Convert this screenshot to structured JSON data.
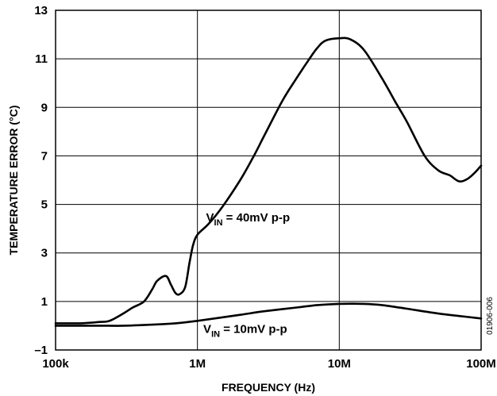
{
  "chart_data": {
    "type": "line",
    "xlabel": "FREQUENCY (Hz)",
    "ylabel": "TEMPERATURE ERROR (°C)",
    "x_scale": "log",
    "xlim": [
      100000,
      100000000
    ],
    "ylim": [
      -1,
      13
    ],
    "grid": true,
    "x_ticks": [
      {
        "value": 100000,
        "label": "100k"
      },
      {
        "value": 1000000,
        "label": "1M"
      },
      {
        "value": 10000000,
        "label": "10M"
      },
      {
        "value": 100000000,
        "label": "100M"
      }
    ],
    "y_ticks": [
      {
        "value": -1,
        "label": "–1"
      },
      {
        "value": 1,
        "label": "1"
      },
      {
        "value": 3,
        "label": "3"
      },
      {
        "value": 5,
        "label": "5"
      },
      {
        "value": 7,
        "label": "7"
      },
      {
        "value": 9,
        "label": "9"
      },
      {
        "value": 11,
        "label": "11"
      },
      {
        "value": 13,
        "label": "13"
      }
    ],
    "series": [
      {
        "name_main": "V",
        "name_sub": "IN",
        "name_rest": " = 40mV p-p",
        "color": "#000000",
        "points": [
          [
            100000,
            0.1
          ],
          [
            150000,
            0.1
          ],
          [
            200000,
            0.15
          ],
          [
            240000,
            0.2
          ],
          [
            300000,
            0.5
          ],
          [
            350000,
            0.75
          ],
          [
            420000,
            1.0
          ],
          [
            480000,
            1.5
          ],
          [
            520000,
            1.85
          ],
          [
            600000,
            2.05
          ],
          [
            650000,
            1.7
          ],
          [
            700000,
            1.35
          ],
          [
            750000,
            1.3
          ],
          [
            820000,
            1.6
          ],
          [
            880000,
            2.6
          ],
          [
            930000,
            3.3
          ],
          [
            1000000,
            3.75
          ],
          [
            1200000,
            4.2
          ],
          [
            1500000,
            4.9
          ],
          [
            2000000,
            6.0
          ],
          [
            2500000,
            7.0
          ],
          [
            3000000,
            7.9
          ],
          [
            4000000,
            9.3
          ],
          [
            5000000,
            10.2
          ],
          [
            6000000,
            10.9
          ],
          [
            7000000,
            11.45
          ],
          [
            8000000,
            11.75
          ],
          [
            10000000,
            11.85
          ],
          [
            12000000,
            11.8
          ],
          [
            15000000,
            11.35
          ],
          [
            20000000,
            10.2
          ],
          [
            25000000,
            9.2
          ],
          [
            30000000,
            8.4
          ],
          [
            40000000,
            7.0
          ],
          [
            50000000,
            6.4
          ],
          [
            60000000,
            6.2
          ],
          [
            70000000,
            5.95
          ],
          [
            80000000,
            6.05
          ],
          [
            90000000,
            6.3
          ],
          [
            100000000,
            6.6
          ]
        ]
      },
      {
        "name_main": "V",
        "name_sub": "IN",
        "name_rest": " = 10mV p-p",
        "color": "#000000",
        "points": [
          [
            100000,
            0.0
          ],
          [
            200000,
            0.0
          ],
          [
            300000,
            0.0
          ],
          [
            500000,
            0.05
          ],
          [
            700000,
            0.1
          ],
          [
            1000000,
            0.2
          ],
          [
            2000000,
            0.45
          ],
          [
            3000000,
            0.6
          ],
          [
            5000000,
            0.75
          ],
          [
            7000000,
            0.85
          ],
          [
            10000000,
            0.9
          ],
          [
            15000000,
            0.9
          ],
          [
            20000000,
            0.85
          ],
          [
            30000000,
            0.7
          ],
          [
            50000000,
            0.5
          ],
          [
            70000000,
            0.4
          ],
          [
            100000000,
            0.3
          ]
        ]
      }
    ],
    "annotations": [
      {
        "series_index": 0,
        "x": 1150000,
        "y": 4.3
      },
      {
        "series_index": 1,
        "x": 1100000,
        "y": -0.3
      }
    ],
    "figure_id": "01906-006"
  }
}
